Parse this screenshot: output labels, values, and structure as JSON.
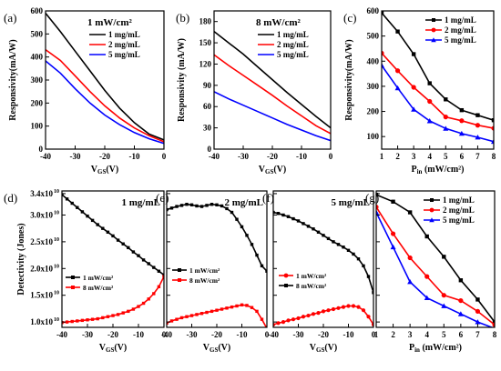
{
  "chart_data": [
    {
      "id": "a",
      "type": "line",
      "letter": "(a)",
      "condition": "1 mW/cm²",
      "ylabel": "Responsivity(mA/W)",
      "xlabel_main": "V",
      "xlabel_sub": "GS",
      "xlabel_unit": "(V)",
      "xlim": [
        -40,
        0
      ],
      "ylim": [
        0,
        600
      ],
      "xticks": [
        -40,
        -30,
        -20,
        -10,
        0
      ],
      "xtick_labels": [
        "-40",
        "-30",
        "-20",
        "-10",
        "0"
      ],
      "yticks": [
        0,
        100,
        200,
        300,
        400,
        500,
        600
      ],
      "ytick_labels": [
        "0",
        "100",
        "200",
        "300",
        "400",
        "500",
        "600"
      ],
      "legend": "top-right",
      "markers": false,
      "series": [
        {
          "name": "1 mg/mL",
          "color": "#000000",
          "x": [
            -40,
            -35,
            -30,
            -25,
            -20,
            -15,
            -10,
            -5,
            0
          ],
          "y": [
            590,
            510,
            425,
            340,
            255,
            178,
            115,
            65,
            40
          ]
        },
        {
          "name": "2 mg/mL",
          "color": "#ff0000",
          "x": [
            -40,
            -35,
            -30,
            -25,
            -20,
            -15,
            -10,
            -5,
            0
          ],
          "y": [
            432,
            385,
            318,
            250,
            188,
            135,
            92,
            58,
            32
          ]
        },
        {
          "name": "5 mg/mL",
          "color": "#0000ff",
          "x": [
            -40,
            -35,
            -30,
            -25,
            -20,
            -15,
            -10,
            -5,
            0
          ],
          "y": [
            383,
            330,
            262,
            200,
            148,
            106,
            72,
            45,
            25
          ]
        }
      ]
    },
    {
      "id": "b",
      "type": "line",
      "letter": "(b)",
      "condition": "8 mW/cm²",
      "ylabel": "Responsivity (mA/W)",
      "xlabel_main": "V",
      "xlabel_sub": "GS",
      "xlabel_unit": "(V)",
      "xlim": [
        -40,
        0
      ],
      "ylim": [
        0,
        195
      ],
      "xticks": [
        -40,
        -30,
        -20,
        -10,
        0
      ],
      "xtick_labels": [
        "-40",
        "-30",
        "-20",
        "-10",
        "0"
      ],
      "yticks": [
        0,
        30,
        60,
        90,
        120,
        150,
        180
      ],
      "ytick_labels": [
        "0",
        "30",
        "60",
        "90",
        "120",
        "150",
        "180"
      ],
      "legend": "top-right",
      "markers": false,
      "series": [
        {
          "name": "1 mg/mL",
          "color": "#000000",
          "x": [
            -40,
            -35,
            -30,
            -25,
            -20,
            -15,
            -10,
            -5,
            0
          ],
          "y": [
            166,
            150,
            134,
            116,
            98,
            80,
            63,
            46,
            30
          ]
        },
        {
          "name": "2 mg/mL",
          "color": "#ff0000",
          "x": [
            -40,
            -35,
            -30,
            -25,
            -20,
            -15,
            -10,
            -5,
            0
          ],
          "y": [
            133,
            118,
            104,
            90,
            76,
            61,
            47,
            33,
            22
          ]
        },
        {
          "name": "5 mg/mL",
          "color": "#0000ff",
          "x": [
            -40,
            -35,
            -30,
            -25,
            -20,
            -15,
            -10,
            -5,
            0
          ],
          "y": [
            81,
            71,
            62,
            53,
            44,
            35,
            27,
            19,
            12
          ]
        }
      ]
    },
    {
      "id": "c",
      "type": "line",
      "letter": "(c)",
      "condition": "",
      "ylabel": "Responsivity(mA/W)",
      "xlabel_main": "P",
      "xlabel_sub": "in",
      "xlabel_unit": " (mW/cm²)",
      "xlim": [
        1,
        8
      ],
      "ylim": [
        50,
        600
      ],
      "xticks": [
        1,
        2,
        3,
        4,
        5,
        6,
        7,
        8
      ],
      "xtick_labels": [
        "1",
        "2",
        "3",
        "4",
        "5",
        "6",
        "7",
        "8"
      ],
      "yticks": [
        100,
        200,
        300,
        400,
        500,
        600
      ],
      "ytick_labels": [
        "100",
        "200",
        "300",
        "400",
        "500",
        "600"
      ],
      "legend": "top-right",
      "markers": true,
      "series": [
        {
          "name": "1 mg/mL",
          "color": "#000000",
          "marker": "square",
          "x": [
            1,
            2,
            3,
            4,
            5,
            6,
            7,
            8
          ],
          "y": [
            592,
            518,
            428,
            312,
            248,
            205,
            185,
            165
          ]
        },
        {
          "name": "2 mg/mL",
          "color": "#ff0000",
          "marker": "circle",
          "x": [
            1,
            2,
            3,
            4,
            5,
            6,
            7,
            8
          ],
          "y": [
            432,
            362,
            296,
            240,
            178,
            163,
            145,
            133
          ]
        },
        {
          "name": "5 mg/mL",
          "color": "#0000ff",
          "marker": "triangle",
          "x": [
            1,
            2,
            3,
            4,
            5,
            6,
            7,
            8
          ],
          "y": [
            383,
            293,
            208,
            162,
            132,
            112,
            97,
            80
          ]
        }
      ]
    },
    {
      "id": "d",
      "type": "line",
      "letter": "(d)",
      "condition": "1 mg/mL",
      "ylabel": "Detectivity (Jones)",
      "xlabel_main": "V",
      "xlabel_sub": "GS",
      "xlabel_unit": "(V)",
      "xlim": [
        -40,
        0
      ],
      "ylim": [
        0.9,
        3.45
      ],
      "xticks": [
        -40,
        -30,
        -20,
        -10,
        0
      ],
      "xtick_labels": [
        "-40",
        "-30",
        "-20",
        "-10",
        "0"
      ],
      "yticks": [
        1.0,
        1.5,
        2.0,
        2.5,
        3.0,
        3.4
      ],
      "ytick_mant": [
        "1.0x10",
        "1.5x10",
        "2.0x10",
        "2.5x10",
        "3.0x10",
        "3.4x10"
      ],
      "ytick_exp": "10",
      "legend": "center-left",
      "markers": true,
      "legend_small": true,
      "series": [
        {
          "name": "1 mW/cm²",
          "color": "#000000",
          "marker": "square",
          "x": [
            -40,
            -38,
            -36,
            -34,
            -32,
            -30,
            -28,
            -26,
            -24,
            -22,
            -20,
            -18,
            -16,
            -14,
            -12,
            -10,
            -8,
            -6,
            -4,
            -2,
            0
          ],
          "y": [
            3.38,
            3.3,
            3.22,
            3.14,
            3.06,
            2.98,
            2.9,
            2.82,
            2.75,
            2.68,
            2.61,
            2.53,
            2.46,
            2.39,
            2.31,
            2.24,
            2.16,
            2.09,
            2.02,
            1.95,
            1.88
          ]
        },
        {
          "name": "8 mW/cm²",
          "color": "#ff0000",
          "marker": "square",
          "x": [
            -40,
            -38,
            -36,
            -34,
            -32,
            -30,
            -28,
            -26,
            -24,
            -22,
            -20,
            -18,
            -16,
            -14,
            -12,
            -10,
            -8,
            -6,
            -4,
            -2,
            0
          ],
          "y": [
            0.99,
            1.0,
            1.01,
            1.02,
            1.03,
            1.04,
            1.05,
            1.06,
            1.08,
            1.1,
            1.12,
            1.14,
            1.17,
            1.2,
            1.24,
            1.29,
            1.35,
            1.43,
            1.53,
            1.66,
            1.85
          ]
        }
      ]
    },
    {
      "id": "e",
      "type": "line",
      "letter": "(e)",
      "condition": "2 mg/mL",
      "ylabel": "",
      "xlabel_main": "V",
      "xlabel_sub": "GS",
      "xlabel_unit": "(V)",
      "xlim": [
        -40,
        0
      ],
      "ylim": [
        0.9,
        3.45
      ],
      "xticks": [
        -40,
        -30,
        -20,
        -10,
        0
      ],
      "xtick_labels": [
        "-40",
        "-30",
        "-20",
        "-10",
        "0"
      ],
      "yticks": [
        1.0,
        1.5,
        2.0,
        2.5,
        3.0,
        3.4
      ],
      "legend": "center-left",
      "markers": true,
      "legend_small": true,
      "series": [
        {
          "name": "1 mW/cm²",
          "color": "#000000",
          "marker": "square",
          "x": [
            -40,
            -38,
            -36,
            -34,
            -32,
            -30,
            -28,
            -26,
            -24,
            -22,
            -20,
            -18,
            -16,
            -14,
            -12,
            -10,
            -8,
            -6,
            -4,
            -2,
            0
          ],
          "y": [
            3.1,
            3.13,
            3.16,
            3.18,
            3.2,
            3.19,
            3.17,
            3.16,
            3.18,
            3.2,
            3.19,
            3.17,
            3.12,
            3.05,
            2.92,
            2.78,
            2.62,
            2.45,
            2.25,
            2.05,
            1.95
          ]
        },
        {
          "name": "8 mW/cm²",
          "color": "#ff0000",
          "marker": "square",
          "x": [
            -40,
            -38,
            -36,
            -34,
            -32,
            -30,
            -28,
            -26,
            -24,
            -22,
            -20,
            -18,
            -16,
            -14,
            -12,
            -10,
            -8,
            -6,
            -4,
            -2,
            0
          ],
          "y": [
            0.98,
            1.02,
            1.05,
            1.08,
            1.1,
            1.12,
            1.14,
            1.16,
            1.18,
            1.2,
            1.22,
            1.24,
            1.26,
            1.28,
            1.3,
            1.32,
            1.31,
            1.27,
            1.2,
            1.05,
            0.88
          ]
        }
      ]
    },
    {
      "id": "f",
      "type": "line",
      "letter": "(f)",
      "condition": "5 mg/mL",
      "ylabel": "",
      "xlabel_main": "V",
      "xlabel_sub": "GS",
      "xlabel_unit": "(V)",
      "xlim": [
        -40,
        0
      ],
      "ylim": [
        0.9,
        3.45
      ],
      "xticks": [
        -40,
        -30,
        -20,
        -10,
        0
      ],
      "xtick_labels": [
        "-40",
        "-30",
        "-20",
        "-10",
        "0"
      ],
      "yticks": [
        1.0,
        1.5,
        2.0,
        2.5,
        3.0,
        3.4
      ],
      "legend": "center-left",
      "markers": true,
      "legend_small": true,
      "series": [
        {
          "name": "1 mW/cm²",
          "color": "#ff0000",
          "marker": "circle",
          "x": [
            -40,
            -38,
            -36,
            -34,
            -32,
            -30,
            -28,
            -26,
            -24,
            -22,
            -20,
            -18,
            -16,
            -14,
            -12,
            -10,
            -8,
            -6,
            -4,
            -2,
            0
          ],
          "y": [
            0.95,
            0.98,
            1.0,
            1.03,
            1.05,
            1.07,
            1.1,
            1.12,
            1.15,
            1.17,
            1.2,
            1.22,
            1.24,
            1.26,
            1.28,
            1.3,
            1.3,
            1.28,
            1.22,
            1.1,
            0.95
          ]
        },
        {
          "name": "8 mW/cm²",
          "color": "#000000",
          "marker": "square",
          "x": [
            -40,
            -38,
            -36,
            -34,
            -32,
            -30,
            -28,
            -26,
            -24,
            -22,
            -20,
            -18,
            -16,
            -14,
            -12,
            -10,
            -8,
            -6,
            -4,
            -2,
            0
          ],
          "y": [
            3.05,
            3.03,
            3.0,
            2.97,
            2.93,
            2.89,
            2.84,
            2.79,
            2.74,
            2.68,
            2.62,
            2.56,
            2.5,
            2.45,
            2.4,
            2.34,
            2.27,
            2.18,
            2.05,
            1.85,
            1.55
          ]
        }
      ]
    },
    {
      "id": "g",
      "type": "line",
      "letter": "(g)",
      "condition": "",
      "ylabel": "",
      "xlabel_main": "P",
      "xlabel_sub": "in",
      "xlabel_unit": " (mW/cm²)",
      "xlim": [
        1,
        8
      ],
      "ylim": [
        0.9,
        3.45
      ],
      "xticks": [
        1,
        2,
        3,
        4,
        5,
        6,
        7,
        8
      ],
      "xtick_labels": [
        "1",
        "2",
        "3",
        "4",
        "5",
        "6",
        "7",
        "8"
      ],
      "yticks": [
        1.0,
        1.5,
        2.0,
        2.5,
        3.0,
        3.4
      ],
      "legend": "top-right",
      "markers": true,
      "series": [
        {
          "name": "1 mg/mL",
          "color": "#000000",
          "marker": "square",
          "x": [
            1,
            2,
            3,
            4,
            5,
            6,
            7,
            8
          ],
          "y": [
            3.38,
            3.25,
            3.05,
            2.6,
            2.22,
            1.78,
            1.42,
            1.0
          ]
        },
        {
          "name": "2 mg/mL",
          "color": "#ff0000",
          "marker": "circle",
          "x": [
            1,
            2,
            3,
            4,
            5,
            6,
            7,
            8
          ],
          "y": [
            3.15,
            2.65,
            2.2,
            1.85,
            1.5,
            1.4,
            1.2,
            0.95
          ]
        },
        {
          "name": "5 mg/mL",
          "color": "#0000ff",
          "marker": "triangle",
          "x": [
            1,
            2,
            3,
            4,
            5,
            6,
            7,
            8
          ],
          "y": [
            3.05,
            2.4,
            1.75,
            1.45,
            1.3,
            1.15,
            1.0,
            0.88
          ]
        }
      ]
    }
  ]
}
